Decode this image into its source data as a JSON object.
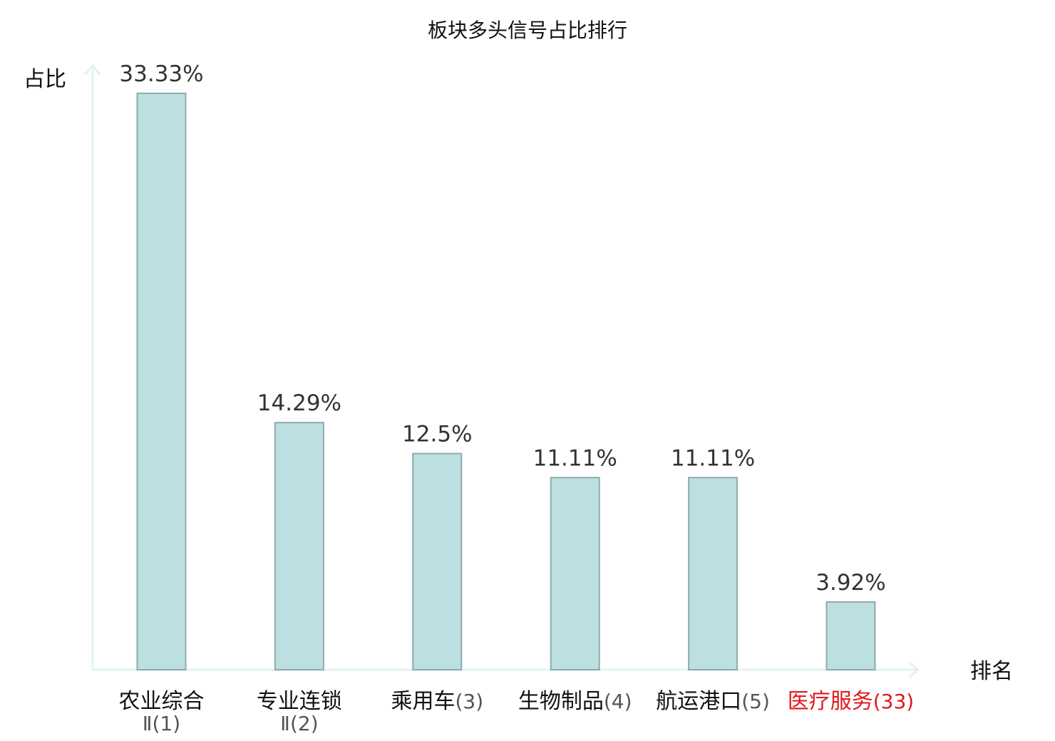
{
  "chart_data": {
    "type": "bar",
    "title": "板块多头信号占比排行",
    "xlabel": "排名",
    "ylabel": "占比",
    "ylim": [
      0,
      34.5
    ],
    "grid": false,
    "legend": "none",
    "categories": [
      {
        "name": "农业综合",
        "subtitle": "Ⅱ",
        "rank": "(1)",
        "highlight": false
      },
      {
        "name": "专业连锁",
        "subtitle": "Ⅱ",
        "rank": "(2)",
        "highlight": false
      },
      {
        "name": "乘用车",
        "subtitle": "",
        "rank": "(3)",
        "highlight": false
      },
      {
        "name": "生物制品",
        "subtitle": "",
        "rank": "(4)",
        "highlight": false
      },
      {
        "name": "航运港口",
        "subtitle": "",
        "rank": "(5)",
        "highlight": false
      },
      {
        "name": "医疗服务",
        "subtitle": "",
        "rank": "(33)",
        "highlight": true
      }
    ],
    "values": [
      33.33,
      14.29,
      12.5,
      11.11,
      11.11,
      3.92
    ],
    "value_labels": [
      "33.33%",
      "14.29%",
      "12.5%",
      "11.11%",
      "11.11%",
      "3.92%"
    ],
    "colors": {
      "bar_fill": "#bce0e2",
      "bar_stroke": "#8faaac",
      "axis": "#e3f3f0",
      "highlight_text": "#e0191d",
      "normal_text": "#111111",
      "rank_text": "#555555"
    }
  }
}
